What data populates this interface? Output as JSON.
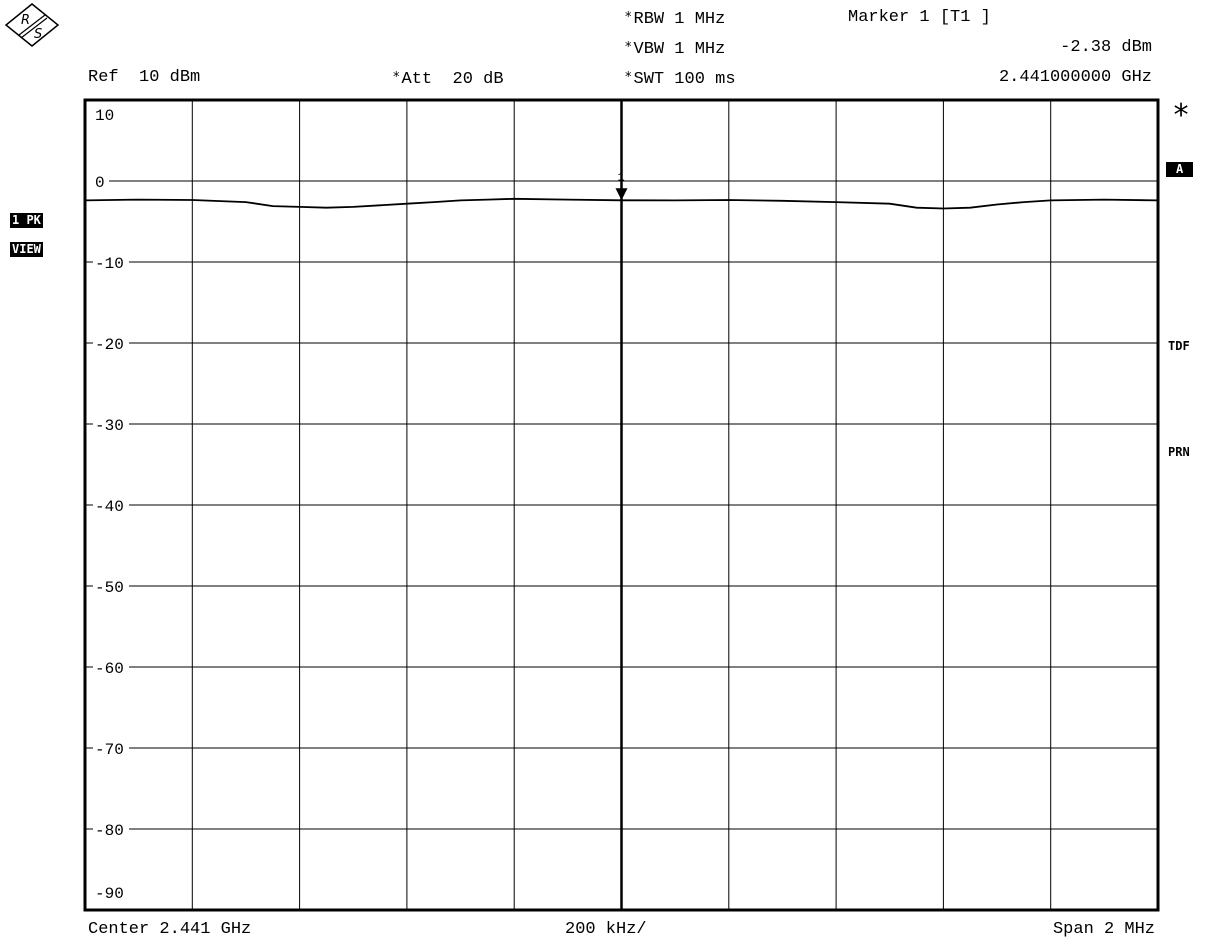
{
  "header": {
    "ref": "Ref  10 dBm",
    "att": "Att  20 dB",
    "rbw": "RBW 1 MHz",
    "vbw": "VBW 1 MHz",
    "swt": "SWT 100 ms",
    "marker_title": "Marker 1 [T1 ]",
    "marker_level": "-2.38 dBm",
    "marker_freq": "2.441000000 GHz",
    "star_symbol": "*"
  },
  "footer": {
    "center": "Center 2.441 GHz",
    "div": "200 kHz/",
    "span": "Span 2 MHz"
  },
  "side_labels": {
    "trace_mode": "1 PK",
    "view": "VIEW",
    "a": "A",
    "tdf": "TDF",
    "prn": "PRN",
    "big_star": "*"
  },
  "chart_data": {
    "type": "line",
    "ylim": [
      -90,
      10
    ],
    "xlim": [
      2.44,
      2.442
    ],
    "x_unit": "GHz",
    "y_unit": "dBm",
    "y_tick_labels": [
      "10",
      "0",
      "-10",
      "-20",
      "-30",
      "-40",
      "-50",
      "-60",
      "-70",
      "-80",
      "-90"
    ],
    "grid": true,
    "marker": {
      "label": "1",
      "x": 2.441,
      "y": -2.38
    },
    "series": [
      {
        "x": [
          2.44,
          2.4401,
          2.4402,
          2.4403,
          2.44035,
          2.4404,
          2.44045,
          2.4405,
          2.4406,
          2.44065,
          2.4407,
          2.44075,
          2.4408,
          2.4409,
          2.441,
          2.4411,
          2.4412,
          2.4413,
          2.4414,
          2.4415,
          2.44155,
          2.4416,
          2.44165,
          2.4417,
          2.44175,
          2.4418,
          2.4419,
          2.442
        ],
        "y": [
          -2.4,
          -2.3,
          -2.35,
          -2.6,
          -3.1,
          -3.2,
          -3.3,
          -3.2,
          -2.8,
          -2.6,
          -2.4,
          -2.3,
          -2.2,
          -2.3,
          -2.38,
          -2.4,
          -2.35,
          -2.45,
          -2.6,
          -2.8,
          -3.3,
          -3.4,
          -3.3,
          -2.9,
          -2.6,
          -2.4,
          -2.3,
          -2.4
        ]
      }
    ]
  }
}
